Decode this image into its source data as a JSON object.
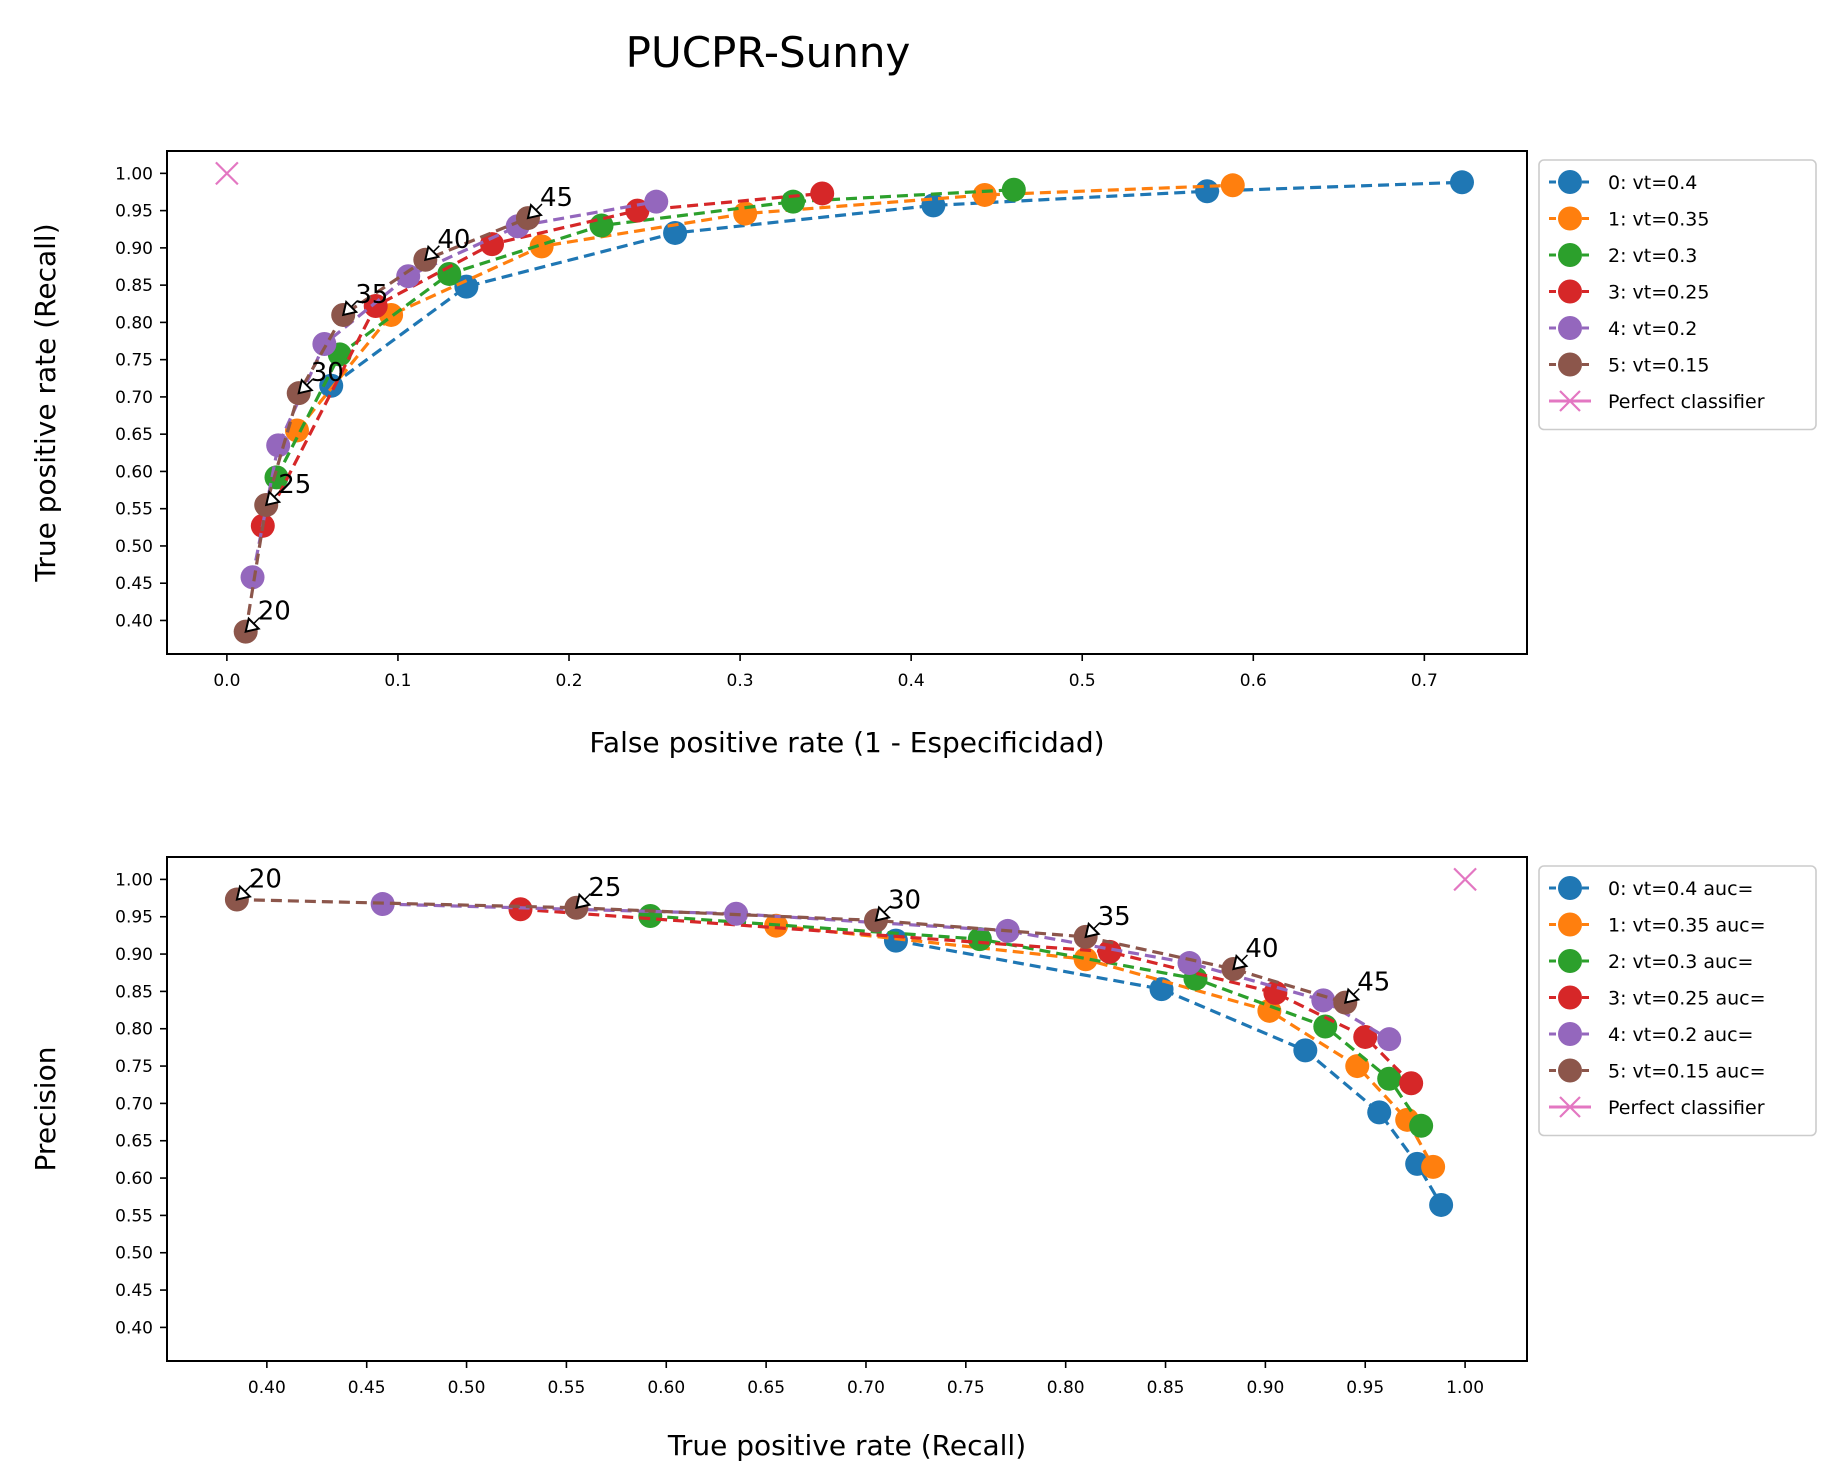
{
  "title": "PUCPR-Sunny",
  "colors": {
    "0": "#1f77b4",
    "1": "#ff7f0e",
    "2": "#2ca02c",
    "3": "#d62728",
    "4": "#9467bd",
    "5": "#8c564b",
    "perfect": "#e377c2"
  },
  "chart_data": [
    {
      "type": "line",
      "xlabel": "False positive rate (1 - Especificidad)",
      "ylabel": "True positive rate (Recall)",
      "xlim": [
        -0.035,
        0.76
      ],
      "ylim": [
        0.355,
        1.03
      ],
      "xticks": [
        0.0,
        0.1,
        0.2,
        0.3,
        0.4,
        0.5,
        0.6,
        0.7
      ],
      "xtick_labels": [
        "0.0",
        "0.1",
        "0.2",
        "0.3",
        "0.4",
        "0.5",
        "0.6",
        "0.7"
      ],
      "yticks": [
        0.4,
        0.45,
        0.5,
        0.55,
        0.6,
        0.65,
        0.7,
        0.75,
        0.8,
        0.85,
        0.9,
        0.95,
        1.0
      ],
      "ytick_labels": [
        "0.40",
        "0.45",
        "0.50",
        "0.55",
        "0.60",
        "0.65",
        "0.70",
        "0.75",
        "0.80",
        "0.85",
        "0.90",
        "0.95",
        "1.00"
      ],
      "legend_position": "outside-right",
      "series": [
        {
          "name": "0: vt=0.4",
          "color": "#1f77b4",
          "x": [
            0.061,
            0.14,
            0.262,
            0.413,
            0.573,
            0.722
          ],
          "y": [
            0.715,
            0.848,
            0.92,
            0.957,
            0.976,
            0.988
          ]
        },
        {
          "name": "1: vt=0.35",
          "color": "#ff7f0e",
          "x": [
            0.041,
            0.096,
            0.184,
            0.303,
            0.443,
            0.588
          ],
          "y": [
            0.655,
            0.81,
            0.902,
            0.946,
            0.971,
            0.984
          ]
        },
        {
          "name": "2: vt=0.3",
          "color": "#2ca02c",
          "x": [
            0.029,
            0.066,
            0.13,
            0.219,
            0.331,
            0.46
          ],
          "y": [
            0.592,
            0.757,
            0.865,
            0.93,
            0.962,
            0.978
          ]
        },
        {
          "name": "3: vt=0.25",
          "color": "#d62728",
          "x": [
            0.021,
            0.087,
            0.155,
            0.24,
            0.348
          ],
          "y": [
            0.527,
            0.822,
            0.905,
            0.95,
            0.973
          ]
        },
        {
          "name": "4: vt=0.2",
          "color": "#9467bd",
          "x": [
            0.015,
            0.03,
            0.057,
            0.106,
            0.17,
            0.251
          ],
          "y": [
            0.458,
            0.635,
            0.771,
            0.862,
            0.929,
            0.962
          ]
        },
        {
          "name": "5: vt=0.15",
          "color": "#8c564b",
          "x": [
            0.011,
            0.023,
            0.042,
            0.068,
            0.116,
            0.176
          ],
          "y": [
            0.385,
            0.555,
            0.705,
            0.81,
            0.884,
            0.94
          ]
        },
        {
          "name": "Perfect classifier",
          "color": "#e377c2",
          "marker": "x",
          "points_only": true,
          "x": [
            0.0
          ],
          "y": [
            1.0
          ]
        }
      ],
      "annotations": [
        {
          "text": "20",
          "x": 0.011,
          "y": 0.385
        },
        {
          "text": "25",
          "x": 0.023,
          "y": 0.555
        },
        {
          "text": "30",
          "x": 0.042,
          "y": 0.705
        },
        {
          "text": "35",
          "x": 0.068,
          "y": 0.81
        },
        {
          "text": "40",
          "x": 0.116,
          "y": 0.884
        },
        {
          "text": "45",
          "x": 0.176,
          "y": 0.94
        }
      ]
    },
    {
      "type": "line",
      "xlabel": "True positive rate (Recall)",
      "ylabel": "Precision",
      "xlim": [
        0.35,
        1.031
      ],
      "ylim": [
        0.355,
        1.03
      ],
      "xticks": [
        0.4,
        0.45,
        0.5,
        0.55,
        0.6,
        0.65,
        0.7,
        0.75,
        0.8,
        0.85,
        0.9,
        0.95,
        1.0
      ],
      "xtick_labels": [
        "0.40",
        "0.45",
        "0.50",
        "0.55",
        "0.60",
        "0.65",
        "0.70",
        "0.75",
        "0.80",
        "0.85",
        "0.90",
        "0.95",
        "1.00"
      ],
      "yticks": [
        0.4,
        0.45,
        0.5,
        0.55,
        0.6,
        0.65,
        0.7,
        0.75,
        0.8,
        0.85,
        0.9,
        0.95,
        1.0
      ],
      "ytick_labels": [
        "0.40",
        "0.45",
        "0.50",
        "0.55",
        "0.60",
        "0.65",
        "0.70",
        "0.75",
        "0.80",
        "0.85",
        "0.90",
        "0.95",
        "1.00"
      ],
      "legend_position": "outside-right",
      "series": [
        {
          "name": "0: vt=0.4 auc=",
          "color": "#1f77b4",
          "x": [
            0.715,
            0.848,
            0.92,
            0.957,
            0.976,
            0.988
          ],
          "y": [
            0.918,
            0.853,
            0.771,
            0.688,
            0.619,
            0.564
          ]
        },
        {
          "name": "1: vt=0.35 auc=",
          "color": "#ff7f0e",
          "x": [
            0.655,
            0.81,
            0.902,
            0.946,
            0.971,
            0.984
          ],
          "y": [
            0.938,
            0.893,
            0.824,
            0.75,
            0.678,
            0.615
          ]
        },
        {
          "name": "2: vt=0.3 auc=",
          "color": "#2ca02c",
          "x": [
            0.592,
            0.757,
            0.865,
            0.93,
            0.962,
            0.978
          ],
          "y": [
            0.951,
            0.92,
            0.867,
            0.803,
            0.733,
            0.67
          ]
        },
        {
          "name": "3: vt=0.25 auc=",
          "color": "#d62728",
          "x": [
            0.527,
            0.822,
            0.905,
            0.95,
            0.973
          ],
          "y": [
            0.96,
            0.903,
            0.848,
            0.789,
            0.727
          ]
        },
        {
          "name": "4: vt=0.2 auc=",
          "color": "#9467bd",
          "x": [
            0.458,
            0.635,
            0.771,
            0.862,
            0.929,
            0.962
          ],
          "y": [
            0.967,
            0.954,
            0.931,
            0.888,
            0.838,
            0.786
          ]
        },
        {
          "name": "5: vt=0.15 auc=",
          "color": "#8c564b",
          "x": [
            0.385,
            0.555,
            0.705,
            0.81,
            0.884,
            0.94
          ],
          "y": [
            0.973,
            0.962,
            0.945,
            0.923,
            0.88,
            0.835
          ]
        },
        {
          "name": "Perfect classifier",
          "color": "#e377c2",
          "marker": "x",
          "points_only": true,
          "x": [
            1.0
          ],
          "y": [
            1.0
          ]
        }
      ],
      "annotations": [
        {
          "text": "20",
          "x": 0.385,
          "y": 0.973
        },
        {
          "text": "25",
          "x": 0.555,
          "y": 0.962
        },
        {
          "text": "30",
          "x": 0.705,
          "y": 0.945
        },
        {
          "text": "35",
          "x": 0.81,
          "y": 0.923
        },
        {
          "text": "40",
          "x": 0.884,
          "y": 0.88
        },
        {
          "text": "45",
          "x": 0.94,
          "y": 0.835
        }
      ]
    }
  ]
}
